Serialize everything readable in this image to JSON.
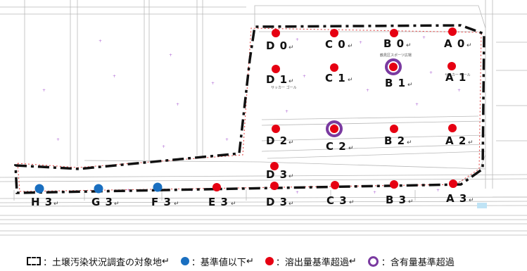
{
  "legend": {
    "boundary_label": "：土壌汚染状況調査の対象地",
    "below_label": "：基準値以下",
    "elution_label": "：溶出量基準超過",
    "content_label": "：含有量基準超過",
    "return_mark": "↵"
  },
  "site_label": "鶴見区スポーツ広場",
  "plan_text": "サッカー ゴール",
  "colors": {
    "below": "#1a6fc0",
    "elution": "#e60012",
    "content": "#7a3aa0",
    "boundary": "#111111",
    "secondary_boundary": "#e23b3b"
  },
  "points": [
    {
      "id": "d0",
      "label": "D 0",
      "status": "elution",
      "ret": true
    },
    {
      "id": "c0",
      "label": "C 0",
      "status": "elution",
      "ret": true
    },
    {
      "id": "b0",
      "label": "B 0",
      "status": "elution",
      "ret": true
    },
    {
      "id": "a0",
      "label": "A 0",
      "status": "elution",
      "ret": true
    },
    {
      "id": "d1",
      "label": "D 1",
      "status": "elution",
      "ret": true
    },
    {
      "id": "c1",
      "label": "C 1",
      "status": "elution",
      "ret": true
    },
    {
      "id": "b1",
      "label": "B 1",
      "status": "elution+content",
      "ret": true
    },
    {
      "id": "a1",
      "label": "A 1",
      "status": "elution",
      "ret": false
    },
    {
      "id": "d2",
      "label": "D 2",
      "status": "elution",
      "ret": true
    },
    {
      "id": "c2",
      "label": "C 2",
      "status": "elution+content",
      "ret": true
    },
    {
      "id": "b2",
      "label": "B 2",
      "status": "elution",
      "ret": true
    },
    {
      "id": "a2",
      "label": "A 2",
      "status": "elution",
      "ret": true
    },
    {
      "id": "d3u",
      "label": "D 3",
      "status": "elution",
      "ret": true
    },
    {
      "id": "h3",
      "label": "H 3",
      "status": "below",
      "ret": true
    },
    {
      "id": "g3",
      "label": "G 3",
      "status": "below",
      "ret": true
    },
    {
      "id": "f3",
      "label": "F 3",
      "status": "below",
      "ret": true
    },
    {
      "id": "e3",
      "label": "E 3",
      "status": "elution",
      "ret": true
    },
    {
      "id": "d3",
      "label": "D 3",
      "status": "elution",
      "ret": true
    },
    {
      "id": "c3",
      "label": "C 3",
      "status": "elution",
      "ret": true
    },
    {
      "id": "b3",
      "label": "B 3",
      "status": "elution",
      "ret": true
    },
    {
      "id": "a3",
      "label": "A 3",
      "status": "elution",
      "ret": true
    }
  ]
}
